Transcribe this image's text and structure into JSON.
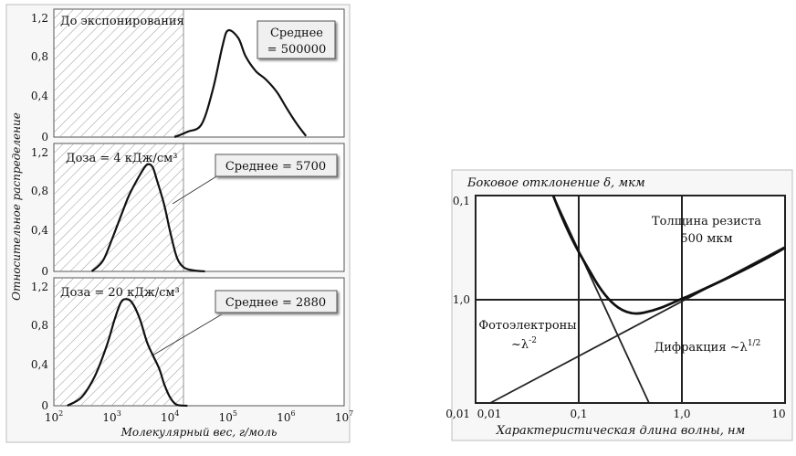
{
  "chart_data": [
    {
      "type": "line",
      "ylabel": "Относительное распределение",
      "xlabel": "Молекулярный вес, г/моль",
      "x_scale": "log",
      "xlim": [
        100,
        10000000
      ],
      "x_ticks": [
        {
          "value": 100,
          "base": "10",
          "exp": "2"
        },
        {
          "value": 1000,
          "base": "10",
          "exp": "3"
        },
        {
          "value": 10000,
          "base": "10",
          "exp": "4"
        },
        {
          "value": 100000,
          "base": "10",
          "exp": "5"
        },
        {
          "value": 1000000,
          "base": "10",
          "exp": "6"
        },
        {
          "value": 10000000,
          "base": "10",
          "exp": "7"
        }
      ],
      "ylim": [
        0,
        1.2
      ],
      "y_ticks": [
        "0",
        "0,4",
        "0,8",
        "1,2"
      ],
      "shaded_region": [
        100,
        20000
      ],
      "panels": [
        {
          "label": "До экспонирования",
          "mean_label": [
            "Среднее",
            "= 500000"
          ],
          "series": [
            {
              "x": [
                12000,
                20000,
                35000,
                55000,
                80000,
                100000,
                150000,
                200000,
                300000,
                450000,
                700000,
                1000000,
                1500000,
                2200000
              ],
              "y": [
                0.0,
                0.05,
                0.12,
                0.45,
                0.85,
                1.0,
                0.93,
                0.76,
                0.62,
                0.54,
                0.42,
                0.28,
                0.13,
                0.01
              ]
            }
          ]
        },
        {
          "label": "Доза = 4 кДж/см³",
          "mean_label": [
            "Среднее = 5700"
          ],
          "series": [
            {
              "x": [
                450,
                700,
                1000,
                1500,
                2000,
                3000,
                4000,
                5000,
                6000,
                8000,
                10000,
                13000,
                17000,
                25000,
                40000
              ],
              "y": [
                0.0,
                0.1,
                0.3,
                0.55,
                0.72,
                0.9,
                1.0,
                0.98,
                0.85,
                0.62,
                0.38,
                0.14,
                0.04,
                0.01,
                0.0
              ]
            }
          ]
        },
        {
          "label": "Доза = 20 кДж/см³",
          "mean_label": [
            "Среднее = 2880"
          ],
          "series": [
            {
              "x": [
                170,
                300,
                500,
                800,
                1100,
                1400,
                1700,
                2200,
                3000,
                4000,
                5000,
                6500,
                8000,
                10000,
                13000,
                20000
              ],
              "y": [
                0.0,
                0.08,
                0.27,
                0.55,
                0.8,
                0.96,
                1.0,
                0.97,
                0.82,
                0.6,
                0.48,
                0.35,
                0.2,
                0.08,
                0.01,
                0.0
              ]
            }
          ]
        }
      ]
    },
    {
      "type": "line",
      "title": "Боковое отклонение δ, мкм",
      "xlabel": "Характеристическая длина волны, нм",
      "x_scale": "log",
      "y_scale": "log",
      "xlim": [
        0.01,
        10
      ],
      "x_tick_labels": [
        "0,01",
        "0,1",
        "1,0",
        "10"
      ],
      "y_tick_labels": [
        "0,1",
        "1,0",
        "0,01"
      ],
      "annotations": {
        "resist_thickness": [
          "Толщина резиста",
          "500 мкм"
        ],
        "photoelectrons": [
          "Фотоэлектроны",
          "~λ",
          "-2"
        ],
        "diffraction": [
          "Дифракция ~λ",
          "1/2"
        ]
      },
      "series": [
        {
          "x": [
            0.03,
            0.5
          ],
          "y": [
            0.1,
            10
          ]
        },
        {
          "x": [
            0.015,
            10
          ],
          "y": [
            10,
            0.4
          ]
        },
        {
          "x": [
            0.03,
            0.06,
            0.1,
            0.15,
            0.2,
            0.3,
            0.5,
            0.7,
            1.0,
            2.0,
            5.0,
            10.0
          ],
          "y": [
            0.1,
            0.19,
            0.32,
            0.5,
            0.65,
            0.85,
            1.05,
            1.07,
            1.0,
            0.85,
            0.62,
            0.45
          ]
        }
      ]
    }
  ]
}
